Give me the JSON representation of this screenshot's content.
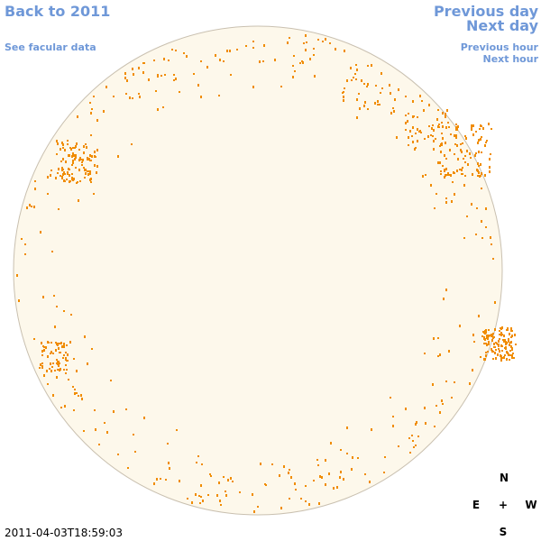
{
  "nav": {
    "back": "Back to 2011",
    "facular": "See facular data",
    "previous_day": "Previous day",
    "next_day": "Next day",
    "previous_hour": "Previous hour",
    "next_hour": "Next hour"
  },
  "compass": {
    "north": "N",
    "east": "E",
    "center": "+",
    "west": "W",
    "south": "S"
  },
  "timestamp": "2011-04-03T18:59:03"
}
